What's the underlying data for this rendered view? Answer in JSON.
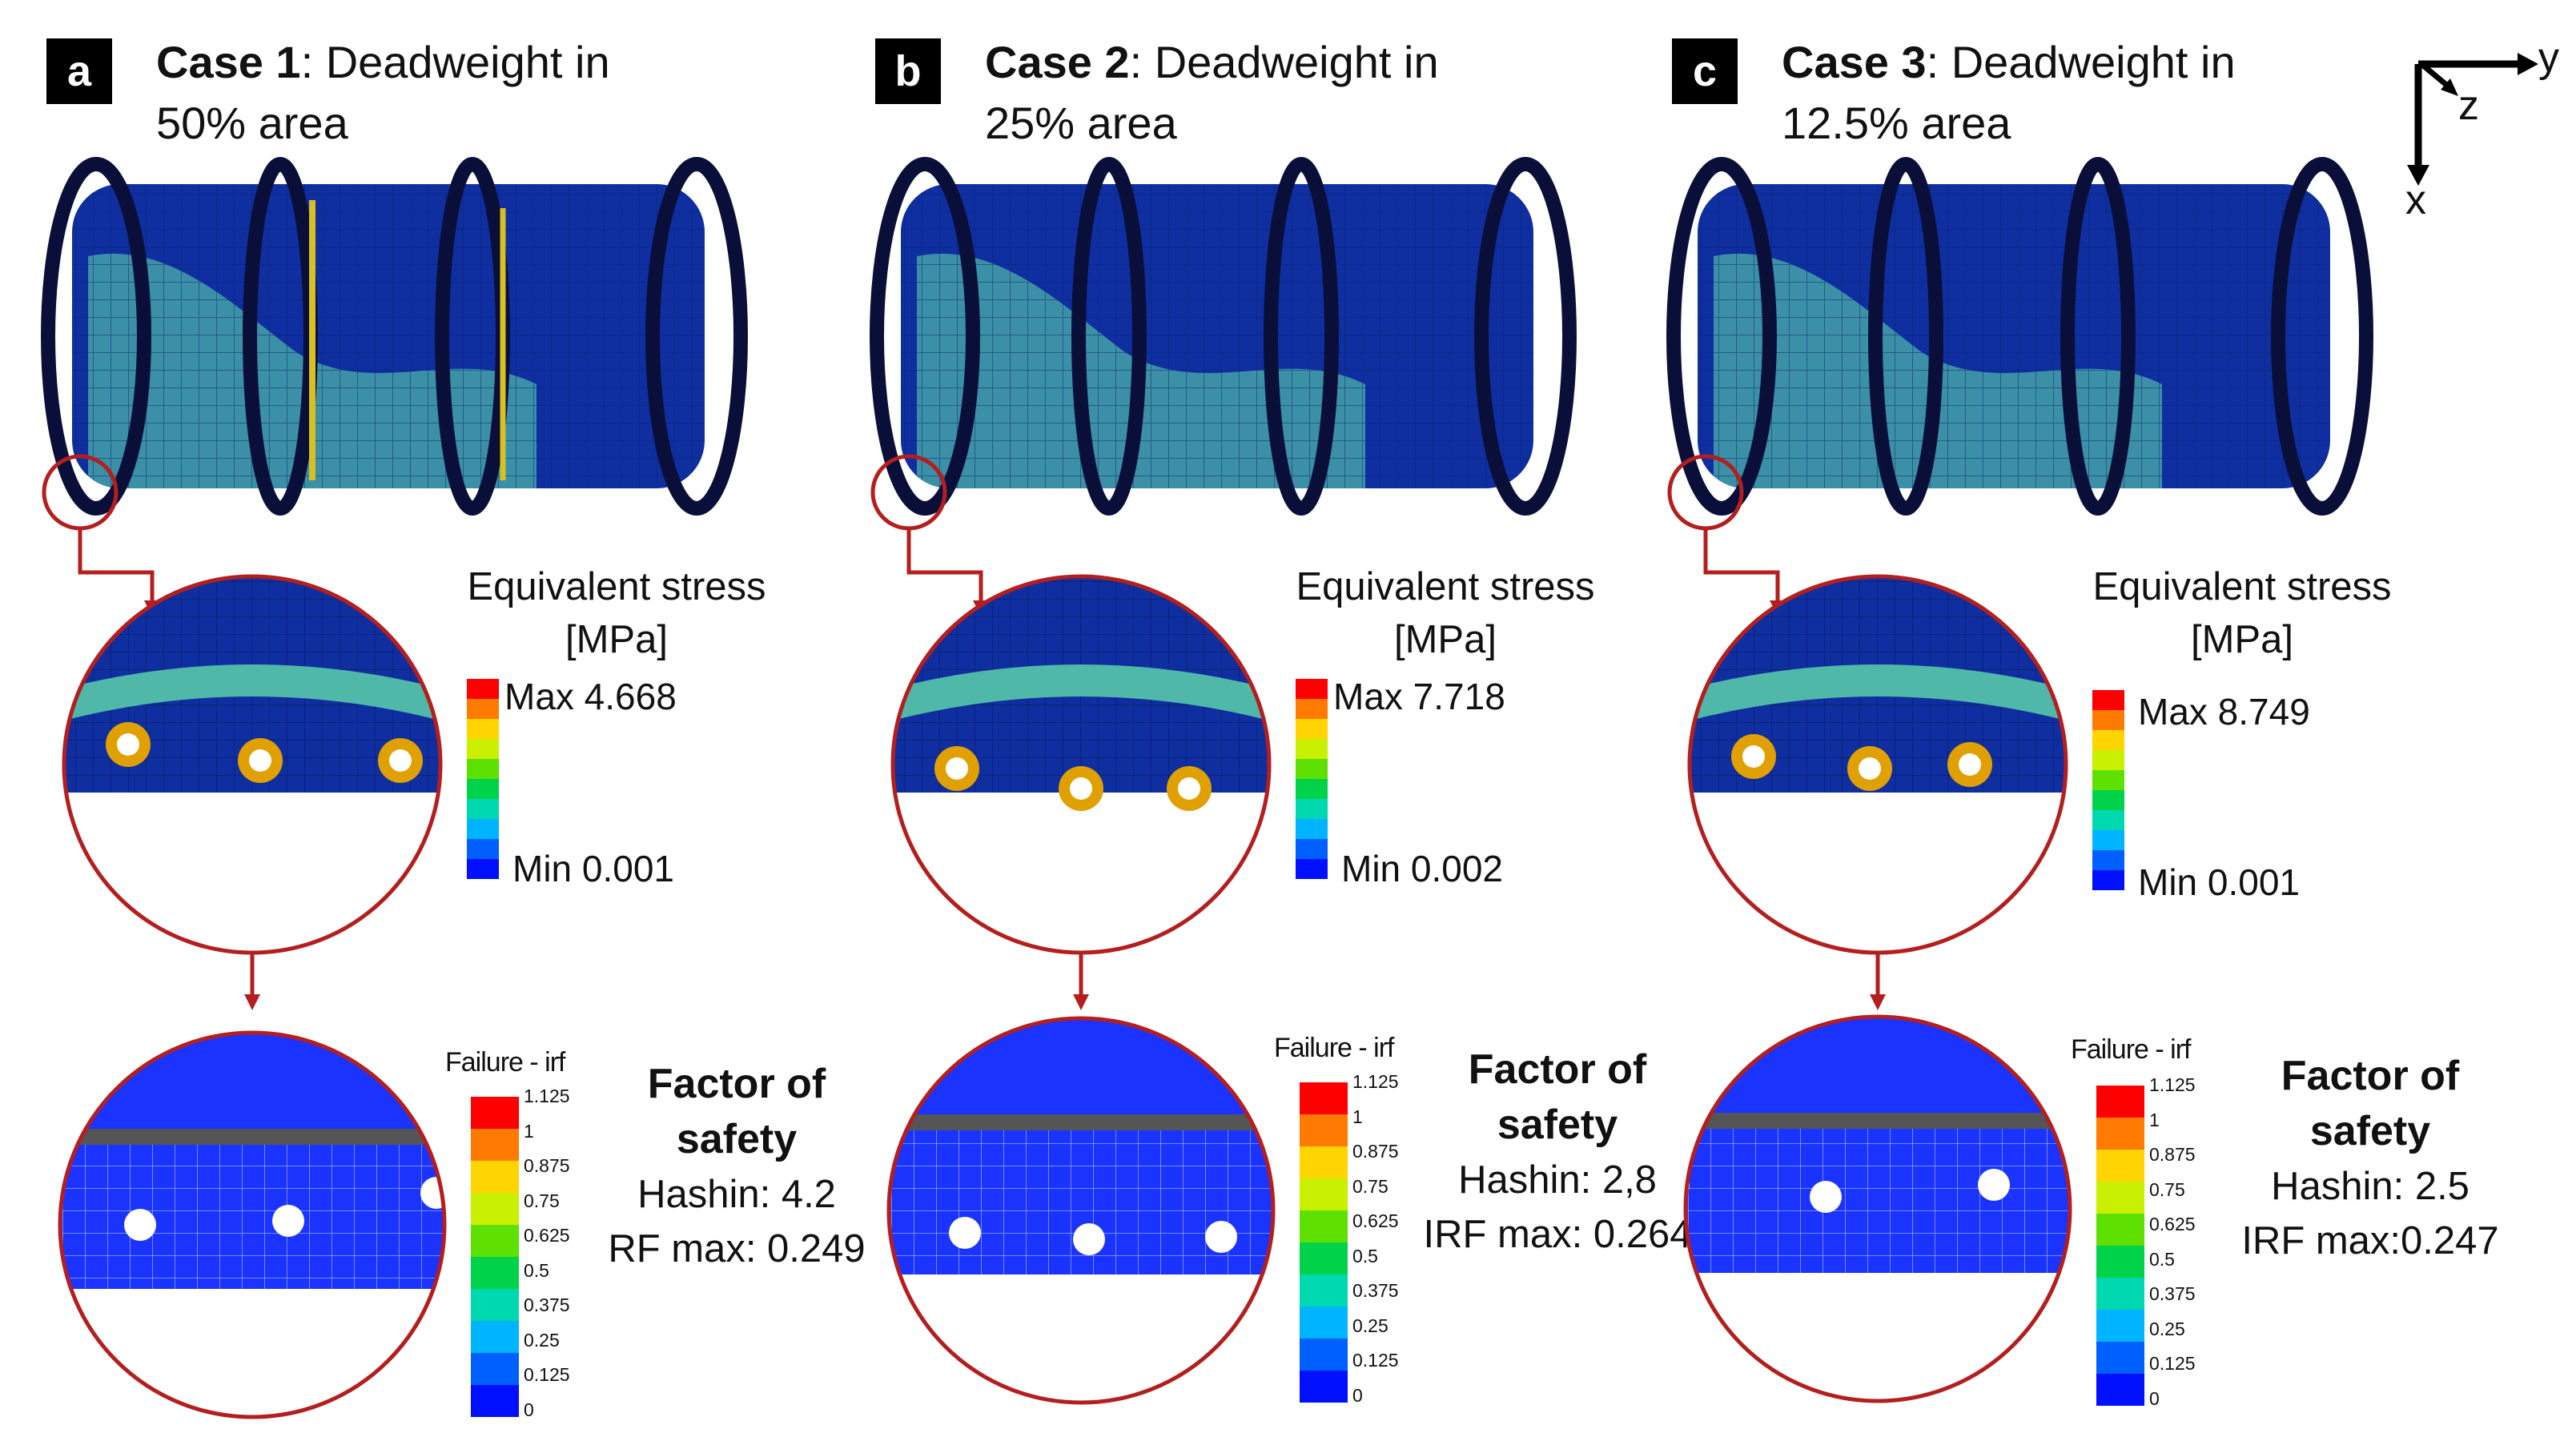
{
  "panels": [
    {
      "letter": "a",
      "case_label": "Case 1",
      "title_rest": ": Deadweight in",
      "title_line2": "50% area",
      "stress": {
        "title_line1": "Equivalent stress",
        "title_line2": "[MPa]",
        "max": "Max 4.668",
        "min": "Min 0.001"
      },
      "failure": {
        "title": "Failure - irf",
        "ticks": [
          "1.125",
          "1",
          "0.875",
          "0.75",
          "0.625",
          "0.5",
          "0.375",
          "0.25",
          "0.125",
          "0"
        ]
      },
      "fos": {
        "heading_line1": "Factor of",
        "heading_line2": "safety",
        "hashin": "Hashin: 4.2",
        "irf": "RF max: 0.249"
      }
    },
    {
      "letter": "b",
      "case_label": "Case 2",
      "title_rest": ": Deadweight in",
      "title_line2": "25% area",
      "stress": {
        "title_line1": "Equivalent stress",
        "title_line2": "[MPa]",
        "max": "Max 7.718",
        "min": "Min 0.002"
      },
      "failure": {
        "title": "Failure - irf",
        "ticks": [
          "1.125",
          "1",
          "0.875",
          "0.75",
          "0.625",
          "0.5",
          "0.375",
          "0.25",
          "0.125",
          "0"
        ]
      },
      "fos": {
        "heading_line1": "Factor of",
        "heading_line2": "safety",
        "hashin": "Hashin: 2,8",
        "irf": "IRF max: 0.264"
      }
    },
    {
      "letter": "c",
      "case_label": "Case 3",
      "title_rest": ": Deadweight  in",
      "title_line2": "12.5% area",
      "stress": {
        "title_line1": "Equivalent stress",
        "title_line2": "[MPa]",
        "max": "Max 8.749",
        "min": "Min 0.001"
      },
      "failure": {
        "title": "Failure - irf",
        "ticks": [
          "1.125",
          "1",
          "0.875",
          "0.75",
          "0.625",
          "0.5",
          "0.375",
          "0.25",
          "0.125",
          "0"
        ]
      },
      "fos": {
        "heading_line1": "Factor of",
        "heading_line2": "safety",
        "hashin": "Hashin: 2.5",
        "irf": "IRF max:0.247"
      }
    }
  ],
  "axes": {
    "y": "y",
    "z": "z",
    "x": "x"
  },
  "colors": {
    "stress_scale": [
      "#ff0000",
      "#ff7a00",
      "#ffd400",
      "#c8f000",
      "#5ee000",
      "#00d24a",
      "#00d8b0",
      "#00b4ff",
      "#0060ff",
      "#0010ff"
    ],
    "failure_scale": [
      "#ff0000",
      "#ff7a00",
      "#ffd400",
      "#c8f000",
      "#5ee000",
      "#00d24a",
      "#00d8b0",
      "#00b4ff",
      "#0060ff",
      "#0010ff"
    ],
    "body": "#0f2fa0",
    "highlight": "#4fb8a8",
    "callout": "#b41e1e"
  }
}
